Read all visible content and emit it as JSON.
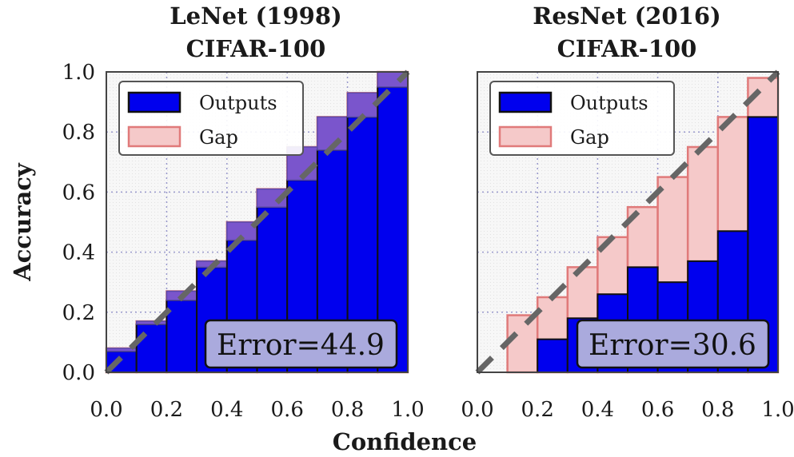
{
  "figure": {
    "xlabel": "Confidence",
    "ylabel": "Accuracy"
  },
  "colors": {
    "outputs_fill": "#0000ee",
    "outputs_edge": "#111111",
    "gap_fill": "#f5c9c9",
    "gap_edge": "#e07a7a",
    "overlap_fill": "#7a55cc",
    "diagonal": "#666666",
    "error_box_fill": "#aaaadd",
    "background": "#f5f5f5"
  },
  "chart_data": [
    {
      "type": "bar",
      "title_lines": [
        "LeNet (1998)",
        "CIFAR-100"
      ],
      "xlabel": "",
      "ylabel": "Accuracy",
      "xlim": [
        0,
        1
      ],
      "ylim": [
        0,
        1
      ],
      "xticks": [
        "0.0",
        "0.2",
        "0.4",
        "0.6",
        "0.8",
        "1.0"
      ],
      "yticks": [
        "0.0",
        "0.2",
        "0.4",
        "0.6",
        "0.8",
        "1.0"
      ],
      "grid": true,
      "legend_position": "top-left",
      "bin_edges": [
        0,
        0.1,
        0.2,
        0.3,
        0.4,
        0.5,
        0.6,
        0.7,
        0.8,
        0.9,
        1.0
      ],
      "series": [
        {
          "name": "Outputs",
          "values": [
            0.07,
            0.16,
            0.24,
            0.35,
            0.44,
            0.55,
            0.64,
            0.74,
            0.85,
            0.95
          ]
        },
        {
          "name": "Gap",
          "values": [
            0.08,
            0.17,
            0.27,
            0.37,
            0.5,
            0.61,
            0.75,
            0.85,
            0.93,
            1.0
          ]
        }
      ],
      "annotation": "Error=44.9"
    },
    {
      "type": "bar",
      "title_lines": [
        "ResNet (2016)",
        "CIFAR-100"
      ],
      "xlabel": "",
      "ylabel": "",
      "xlim": [
        0,
        1
      ],
      "ylim": [
        0,
        1
      ],
      "xticks": [
        "0.0",
        "0.2",
        "0.4",
        "0.6",
        "0.8",
        "1.0"
      ],
      "yticks": [],
      "grid": true,
      "legend_position": "top-left",
      "bin_edges": [
        0,
        0.1,
        0.2,
        0.3,
        0.4,
        0.5,
        0.6,
        0.7,
        0.8,
        0.9,
        1.0
      ],
      "series": [
        {
          "name": "Outputs",
          "values": [
            0.0,
            0.0,
            0.11,
            0.18,
            0.26,
            0.35,
            0.3,
            0.37,
            0.47,
            0.85
          ]
        },
        {
          "name": "Gap",
          "values": [
            0.0,
            0.19,
            0.25,
            0.35,
            0.45,
            0.55,
            0.65,
            0.75,
            0.85,
            0.98
          ]
        }
      ],
      "annotation": "Error=30.6"
    }
  ]
}
